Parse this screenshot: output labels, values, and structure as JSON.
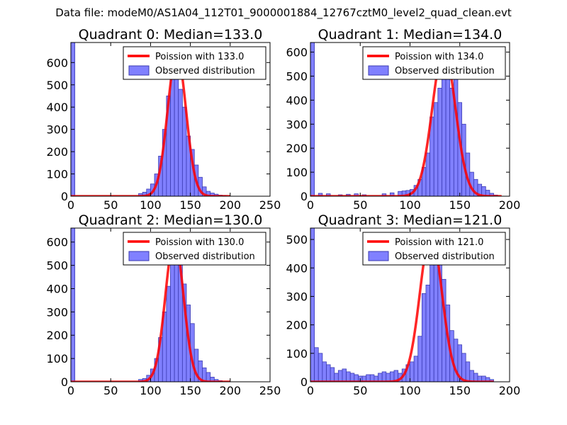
{
  "figure_title": "Data file: modeM0/AS1A04_112T01_9000001884_12767cztM0_level2_quad_clean.evt",
  "colors": {
    "bar_fill": "#8080ff",
    "bar_edge": "#3a3ab0",
    "poisson_line": "#ff0000",
    "axis": "#000000"
  },
  "chart_data": [
    {
      "type": "bar",
      "title": "Quadrant 0: Median=133.0",
      "legend": [
        "Poission with 133.0",
        "Observed distribution"
      ],
      "legend_position": "top-right",
      "xlim": [
        0,
        250
      ],
      "ylim": [
        0,
        690
      ],
      "xticks": [
        "0",
        "50",
        "100",
        "150",
        "200",
        "250"
      ],
      "yticks": [
        "0",
        "100",
        "200",
        "300",
        "400",
        "500",
        "600"
      ],
      "bin_width": 5,
      "bins": [
        [
          0,
          690
        ],
        [
          85,
          12
        ],
        [
          90,
          18
        ],
        [
          95,
          32
        ],
        [
          100,
          55
        ],
        [
          105,
          100
        ],
        [
          110,
          180
        ],
        [
          115,
          300
        ],
        [
          120,
          450
        ],
        [
          125,
          580
        ],
        [
          130,
          590
        ],
        [
          135,
          480
        ],
        [
          140,
          400
        ],
        [
          145,
          270
        ],
        [
          150,
          210
        ],
        [
          155,
          140
        ],
        [
          160,
          85
        ],
        [
          165,
          42
        ],
        [
          170,
          22
        ],
        [
          175,
          14
        ],
        [
          180,
          9
        ],
        [
          185,
          5
        ],
        [
          190,
          3
        ]
      ],
      "poisson_mean": 133.0,
      "poisson_peak": 640,
      "poisson_curve_xrange": [
        0,
        200
      ]
    },
    {
      "type": "bar",
      "title": "Quadrant 1: Median=134.0",
      "legend": [
        "Poission with 134.0",
        "Observed distribution"
      ],
      "legend_position": "top-right",
      "xlim": [
        0,
        200
      ],
      "ylim": [
        0,
        640
      ],
      "xticks": [
        "0",
        "50",
        "100",
        "150",
        "200"
      ],
      "yticks": [
        "0",
        "100",
        "200",
        "300",
        "400",
        "500",
        "600"
      ],
      "bin_width": 4,
      "bins": [
        [
          0,
          640
        ],
        [
          8,
          12
        ],
        [
          16,
          10
        ],
        [
          28,
          6
        ],
        [
          36,
          8
        ],
        [
          44,
          10
        ],
        [
          52,
          6
        ],
        [
          72,
          10
        ],
        [
          80,
          14
        ],
        [
          88,
          20
        ],
        [
          92,
          22
        ],
        [
          96,
          24
        ],
        [
          100,
          28
        ],
        [
          104,
          45
        ],
        [
          108,
          70
        ],
        [
          112,
          120
        ],
        [
          116,
          180
        ],
        [
          120,
          330
        ],
        [
          124,
          390
        ],
        [
          128,
          450
        ],
        [
          132,
          560
        ],
        [
          136,
          590
        ],
        [
          140,
          450
        ],
        [
          144,
          490
        ],
        [
          148,
          390
        ],
        [
          152,
          300
        ],
        [
          156,
          180
        ],
        [
          160,
          100
        ],
        [
          164,
          70
        ],
        [
          168,
          50
        ],
        [
          172,
          40
        ],
        [
          176,
          25
        ],
        [
          180,
          12
        ],
        [
          184,
          5
        ]
      ],
      "poisson_mean": 134.0,
      "poisson_peak": 610,
      "poisson_curve_xrange": [
        0,
        192
      ]
    },
    {
      "type": "bar",
      "title": "Quadrant 2: Median=130.0",
      "legend": [
        "Poission with 130.0",
        "Observed distribution"
      ],
      "legend_position": "top-right",
      "xlim": [
        0,
        250
      ],
      "ylim": [
        0,
        660
      ],
      "xticks": [
        "0",
        "50",
        "100",
        "150",
        "200",
        "250"
      ],
      "yticks": [
        "0",
        "100",
        "200",
        "300",
        "400",
        "500",
        "600"
      ],
      "bin_width": 5,
      "bins": [
        [
          0,
          660
        ],
        [
          85,
          10
        ],
        [
          90,
          14
        ],
        [
          95,
          28
        ],
        [
          100,
          55
        ],
        [
          105,
          100
        ],
        [
          110,
          190
        ],
        [
          115,
          300
        ],
        [
          120,
          410
        ],
        [
          125,
          540
        ],
        [
          130,
          620
        ],
        [
          135,
          570
        ],
        [
          140,
          420
        ],
        [
          145,
          330
        ],
        [
          150,
          250
        ],
        [
          155,
          140
        ],
        [
          160,
          90
        ],
        [
          165,
          60
        ],
        [
          170,
          40
        ],
        [
          175,
          20
        ],
        [
          180,
          10
        ],
        [
          185,
          5
        ]
      ],
      "poisson_mean": 130.0,
      "poisson_peak": 610,
      "poisson_curve_xrange": [
        0,
        200
      ]
    },
    {
      "type": "bar",
      "title": "Quadrant 3: Median=121.0",
      "legend": [
        "Poission with 121.0",
        "Observed distribution"
      ],
      "legend_position": "top-right",
      "xlim": [
        0,
        200
      ],
      "ylim": [
        0,
        540
      ],
      "xticks": [
        "0",
        "50",
        "100",
        "150",
        "200"
      ],
      "yticks": [
        "0",
        "100",
        "200",
        "300",
        "400",
        "500"
      ],
      "bin_width": 4,
      "bins": [
        [
          0,
          540
        ],
        [
          4,
          120
        ],
        [
          8,
          100
        ],
        [
          12,
          70
        ],
        [
          16,
          60
        ],
        [
          20,
          50
        ],
        [
          24,
          30
        ],
        [
          28,
          40
        ],
        [
          32,
          45
        ],
        [
          36,
          35
        ],
        [
          40,
          30
        ],
        [
          44,
          25
        ],
        [
          48,
          20
        ],
        [
          52,
          20
        ],
        [
          56,
          25
        ],
        [
          60,
          25
        ],
        [
          64,
          20
        ],
        [
          68,
          30
        ],
        [
          72,
          35
        ],
        [
          76,
          30
        ],
        [
          80,
          35
        ],
        [
          84,
          40
        ],
        [
          88,
          30
        ],
        [
          92,
          45
        ],
        [
          96,
          60
        ],
        [
          100,
          70
        ],
        [
          104,
          90
        ],
        [
          108,
          160
        ],
        [
          112,
          310
        ],
        [
          116,
          340
        ],
        [
          120,
          420
        ],
        [
          124,
          500
        ],
        [
          128,
          440
        ],
        [
          132,
          360
        ],
        [
          136,
          270
        ],
        [
          140,
          180
        ],
        [
          144,
          150
        ],
        [
          148,
          130
        ],
        [
          152,
          100
        ],
        [
          156,
          70
        ],
        [
          160,
          40
        ],
        [
          164,
          30
        ],
        [
          168,
          20
        ],
        [
          172,
          20
        ],
        [
          176,
          15
        ],
        [
          180,
          8
        ]
      ],
      "poisson_mean": 121.0,
      "poisson_peak": 520,
      "poisson_curve_xrange": [
        0,
        184
      ]
    }
  ]
}
